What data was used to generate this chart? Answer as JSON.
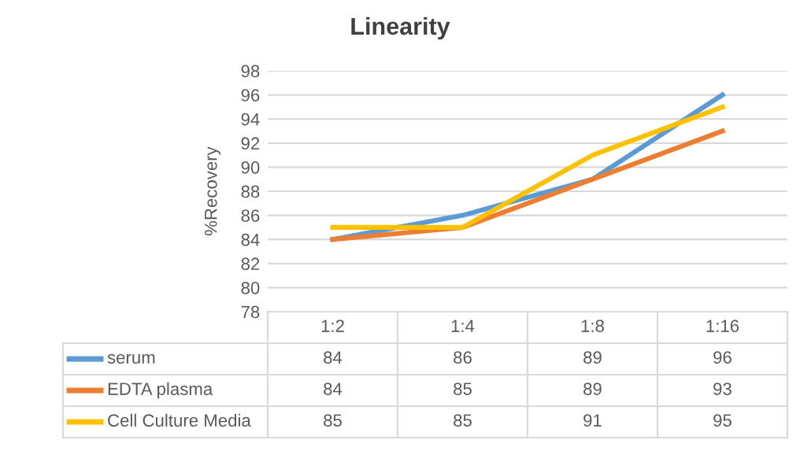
{
  "chart_data": {
    "type": "line",
    "title": "Linearity",
    "ylabel": "%Recovery",
    "categories": [
      "1:2",
      "1:4",
      "1:8",
      "1:16"
    ],
    "series": [
      {
        "name": "serum",
        "color": "#5b9bd5",
        "values": [
          84,
          86,
          89,
          96
        ]
      },
      {
        "name": "EDTA plasma",
        "color": "#ed7d31",
        "values": [
          84,
          85,
          89,
          93
        ]
      },
      {
        "name": "Cell Culture Media",
        "color": "#ffc000",
        "values": [
          85,
          85,
          91,
          95
        ]
      }
    ],
    "ylim": [
      78,
      98
    ],
    "yticks": [
      78,
      80,
      82,
      84,
      86,
      88,
      90,
      92,
      94,
      96,
      98
    ],
    "grid": "y",
    "data_labels": true,
    "legend": "bottom",
    "marker": "none",
    "line_style": "solid"
  }
}
